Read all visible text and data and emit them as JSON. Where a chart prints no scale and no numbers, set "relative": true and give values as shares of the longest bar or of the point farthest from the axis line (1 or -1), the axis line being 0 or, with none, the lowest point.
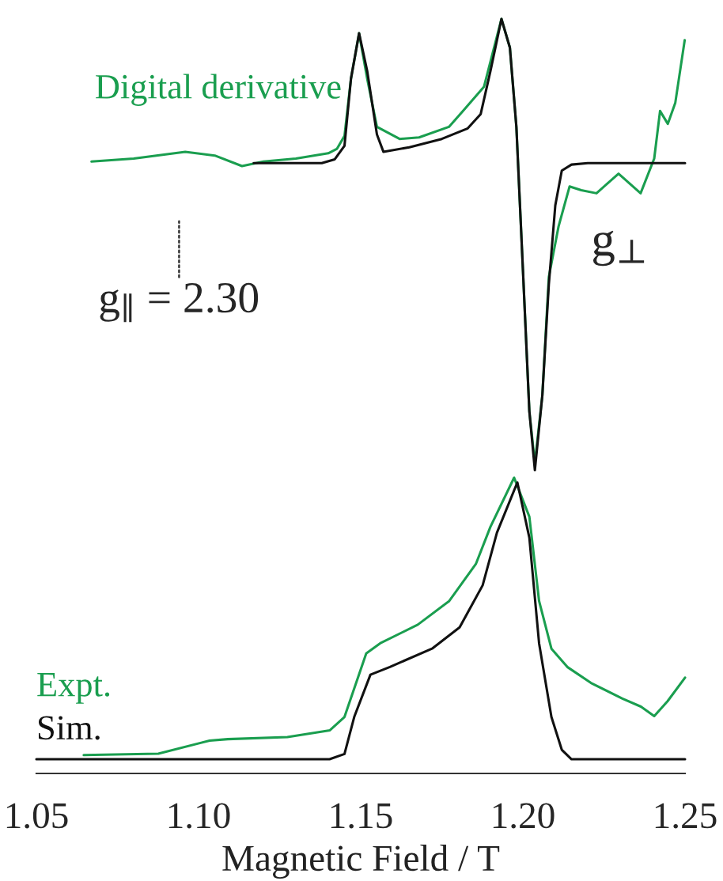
{
  "chart_data": [
    {
      "type": "line",
      "relative": true,
      "xlim": [
        1.05,
        1.25
      ],
      "tick_labels": false,
      "legend": false,
      "series": [
        {
          "name": "Digital derivative",
          "color": "#1a9e4f",
          "x": [
            1.067,
            1.08,
            1.0959,
            1.105,
            1.1134,
            1.12,
            1.13,
            1.14,
            1.1427,
            1.145,
            1.147,
            1.1495,
            1.152,
            1.155,
            1.162,
            1.168,
            1.1772,
            1.1815,
            1.188,
            1.1934,
            1.196,
            1.198,
            1.2,
            1.202,
            1.2037,
            1.206,
            1.208,
            1.211,
            1.2144,
            1.218,
            1.2227,
            1.2295,
            1.2363,
            1.2405,
            1.2423,
            1.2447,
            1.247,
            1.2499
          ],
          "values": [
            0.811,
            0.815,
            0.824,
            0.819,
            0.805,
            0.811,
            0.815,
            0.822,
            0.828,
            0.845,
            0.921,
            0.981,
            0.921,
            0.857,
            0.841,
            0.843,
            0.857,
            0.878,
            0.91,
            1.0,
            0.962,
            0.857,
            0.669,
            0.48,
            0.411,
            0.501,
            0.658,
            0.725,
            0.778,
            0.773,
            0.769,
            0.795,
            0.769,
            0.815,
            0.878,
            0.861,
            0.889,
            0.972
          ]
        },
        {
          "color": "#111111",
          "x": [
            1.117,
            1.138,
            1.142,
            1.145,
            1.147,
            1.1495,
            1.152,
            1.155,
            1.157,
            1.165,
            1.175,
            1.183,
            1.187,
            1.19,
            1.1934,
            1.196,
            1.198,
            1.2,
            1.202,
            1.2037,
            1.206,
            1.208,
            1.21,
            1.212,
            1.215,
            1.22,
            1.25
          ],
          "values": [
            0.809,
            0.809,
            0.814,
            0.832,
            0.921,
            0.981,
            0.931,
            0.847,
            0.824,
            0.83,
            0.841,
            0.855,
            0.874,
            0.931,
            1.0,
            0.962,
            0.857,
            0.669,
            0.48,
            0.402,
            0.501,
            0.648,
            0.753,
            0.799,
            0.807,
            0.809,
            0.809
          ]
        }
      ],
      "annotations": [
        "g$_{∥}$ = 2.30",
        "g$_{⊥}$"
      ]
    },
    {
      "type": "line",
      "relative": true,
      "xlim": [
        1.05,
        1.25
      ],
      "tick_labels": "x",
      "legend": false,
      "xticks": [
        1.05,
        {
          "value": 1.1,
          "label": "1.10"
        },
        1.15,
        {
          "value": 1.2,
          "label": "1.20"
        },
        1.25
      ],
      "xlabel": "Magnetic Field / T",
      "series": [
        {
          "name": "Expt.",
          "color": "#1a9e4f",
          "x": [
            1.0646,
            1.0876,
            1.1034,
            1.109,
            1.1274,
            1.1405,
            1.145,
            1.1517,
            1.156,
            1.1676,
            1.1773,
            1.1855,
            1.19,
            1.1973,
            1.202,
            1.205,
            1.2088,
            1.2137,
            1.221,
            1.2307,
            1.2364,
            1.2405,
            1.2446,
            1.25
          ],
          "values": [
            0.062,
            0.067,
            0.111,
            0.116,
            0.123,
            0.146,
            0.191,
            0.406,
            0.44,
            0.503,
            0.583,
            0.708,
            0.834,
            1.0,
            0.868,
            0.583,
            0.422,
            0.36,
            0.306,
            0.253,
            0.226,
            0.194,
            0.244,
            0.324
          ]
        },
        {
          "name": "Sim.",
          "color": "#111111",
          "x": [
            1.05,
            1.1404,
            1.145,
            1.148,
            1.153,
            1.159,
            1.172,
            1.1805,
            1.1876,
            1.192,
            1.1983,
            1.202,
            1.205,
            1.2088,
            1.212,
            1.215,
            1.25
          ],
          "values": [
            0.048,
            0.048,
            0.066,
            0.191,
            0.334,
            0.36,
            0.422,
            0.494,
            0.636,
            0.814,
            0.984,
            0.797,
            0.44,
            0.191,
            0.08,
            0.048,
            0.048
          ]
        }
      ]
    }
  ]
}
